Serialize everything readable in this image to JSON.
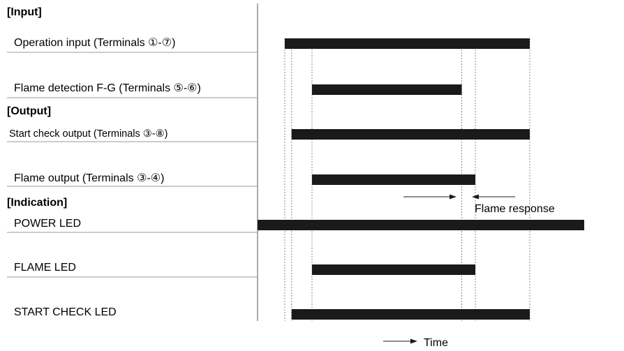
{
  "sections": {
    "input": "[Input]",
    "output": "[Output]",
    "indication": "[Indication]"
  },
  "signals": [
    {
      "id": "operation-input",
      "label": "Operation input (Terminals ①-⑦)",
      "start": 0.4,
      "end": 4.0
    },
    {
      "id": "flame-detection",
      "label": "Flame detection F-G (Terminals ⑤-⑥)",
      "start": 0.8,
      "end": 3.0
    },
    {
      "id": "start-check-output",
      "label": "Start check output (Terminals ③-⑧)",
      "start": 0.5,
      "end": 4.0
    },
    {
      "id": "flame-output",
      "label": "Flame output (Terminals ③-④)",
      "start": 0.8,
      "end": 3.2
    },
    {
      "id": "power-led",
      "label": "POWER LED",
      "start": 0.0,
      "end": 4.8
    },
    {
      "id": "flame-led",
      "label": "FLAME LED",
      "start": 0.8,
      "end": 3.2
    },
    {
      "id": "start-check-led",
      "label": "START CHECK LED",
      "start": 0.5,
      "end": 4.0
    }
  ],
  "guides": [
    0.4,
    0.5,
    0.8,
    3.0,
    3.2,
    4.0
  ],
  "annotations": {
    "flame_response": "Flame response",
    "time": "Time"
  },
  "colors": {
    "bar": "#1a1a1a",
    "line": "#888888",
    "text": "#1a1a1a"
  }
}
